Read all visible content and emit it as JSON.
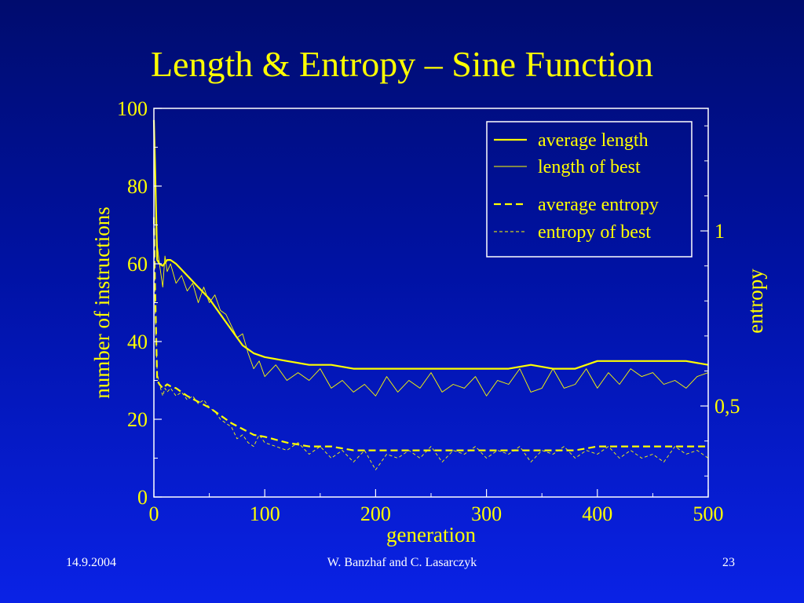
{
  "slide": {
    "title": "Length & Entropy – Sine Function",
    "footer_date": "14.9.2004",
    "footer_authors": "W. Banzhaf and C. Lasarczyk",
    "page_number": "23"
  },
  "colors": {
    "text": "#ffff00",
    "lines": "#ffff00",
    "axes": "#ffffff",
    "footer_text": "#ffffff"
  },
  "chart_data": {
    "type": "line",
    "title": "",
    "xlabel": "generation",
    "ylabel": "number of instructions",
    "y2label": "entropy",
    "xlim": [
      0,
      500
    ],
    "ylim": [
      0,
      100
    ],
    "y2lim": [
      0.24,
      1.35
    ],
    "x_ticks": [
      0,
      100,
      200,
      300,
      400,
      500
    ],
    "x_tick_labels": [
      "0",
      "100",
      "200",
      "300",
      "400",
      "500"
    ],
    "y_ticks": [
      0,
      20,
      40,
      60,
      80,
      100
    ],
    "y_tick_labels": [
      "0",
      "20",
      "40",
      "60",
      "80",
      "100"
    ],
    "y2_ticks": [
      0.5,
      1
    ],
    "y2_tick_labels": [
      "0,5",
      "1"
    ],
    "grid": false,
    "legend_position": "top-right",
    "series": [
      {
        "name": "average length",
        "axis": "left",
        "style": "solid-thick",
        "x": [
          0,
          1,
          3,
          5,
          8,
          12,
          15,
          20,
          30,
          40,
          50,
          60,
          70,
          80,
          90,
          100,
          120,
          140,
          160,
          180,
          200,
          220,
          240,
          260,
          280,
          300,
          320,
          340,
          360,
          380,
          400,
          420,
          440,
          460,
          480,
          500
        ],
        "y": [
          97,
          86,
          61,
          60,
          59.5,
          61,
          61,
          60,
          57,
          54,
          51,
          47,
          43,
          39,
          37,
          36,
          35,
          34,
          34,
          33,
          33,
          33,
          33,
          33,
          33,
          33,
          33,
          34,
          33,
          33,
          35,
          35,
          35,
          35,
          35,
          34
        ]
      },
      {
        "name": "length of best",
        "axis": "left",
        "style": "solid-thin",
        "x": [
          0,
          1,
          3,
          5,
          8,
          10,
          12,
          15,
          20,
          25,
          30,
          35,
          40,
          45,
          50,
          55,
          60,
          65,
          70,
          75,
          80,
          85,
          90,
          95,
          100,
          110,
          120,
          130,
          140,
          150,
          160,
          170,
          180,
          190,
          200,
          210,
          220,
          230,
          240,
          250,
          260,
          270,
          280,
          290,
          300,
          310,
          320,
          330,
          340,
          350,
          360,
          370,
          380,
          390,
          400,
          410,
          420,
          430,
          440,
          450,
          460,
          470,
          480,
          490,
          500
        ],
        "y": [
          97,
          85,
          65,
          60,
          54,
          62,
          58,
          60,
          55,
          57,
          53,
          55,
          50,
          54,
          50,
          52,
          48,
          47,
          44,
          41,
          42,
          37,
          33,
          35,
          31,
          34,
          30,
          32,
          30,
          33,
          28,
          30,
          27,
          29,
          26,
          31,
          27,
          30,
          28,
          32,
          27,
          29,
          28,
          31,
          26,
          30,
          29,
          33,
          27,
          28,
          33,
          28,
          29,
          33,
          28,
          32,
          29,
          33,
          31,
          32,
          29,
          30,
          28,
          31,
          32
        ]
      },
      {
        "name": "average entropy",
        "axis": "left",
        "style": "dashed-thick",
        "x": [
          0,
          1,
          3,
          5,
          8,
          12,
          15,
          20,
          30,
          40,
          50,
          60,
          70,
          80,
          90,
          100,
          120,
          140,
          160,
          180,
          200,
          220,
          240,
          260,
          280,
          300,
          320,
          340,
          360,
          380,
          400,
          420,
          440,
          460,
          480,
          500
        ],
        "y": [
          72,
          55,
          30,
          29,
          28,
          29,
          28.5,
          28,
          26,
          24.5,
          23,
          21,
          19,
          17.5,
          16,
          15.5,
          14,
          13,
          13,
          12,
          12,
          12,
          12,
          12,
          12,
          12,
          12,
          12,
          12,
          12,
          13,
          13,
          13,
          13,
          13,
          13
        ]
      },
      {
        "name": "entropy of best",
        "axis": "left",
        "style": "dashed-thin",
        "x": [
          0,
          1,
          3,
          5,
          8,
          10,
          12,
          15,
          20,
          25,
          30,
          35,
          40,
          45,
          50,
          55,
          60,
          65,
          70,
          75,
          80,
          85,
          90,
          95,
          100,
          110,
          120,
          130,
          140,
          150,
          160,
          170,
          180,
          190,
          200,
          210,
          220,
          230,
          240,
          250,
          260,
          270,
          280,
          290,
          300,
          310,
          320,
          330,
          340,
          350,
          360,
          370,
          380,
          390,
          400,
          410,
          420,
          430,
          440,
          450,
          460,
          470,
          480,
          490,
          500
        ],
        "y": [
          72,
          50,
          32,
          29,
          26,
          28,
          27,
          28,
          26,
          27,
          25,
          26,
          24,
          25,
          23,
          22,
          20,
          19,
          18,
          15,
          16,
          14,
          13,
          16,
          14,
          13,
          12,
          14,
          11,
          13,
          10,
          12,
          9,
          12,
          7,
          11,
          10,
          12,
          10,
          13,
          9,
          12,
          11,
          13,
          10,
          12,
          11,
          13,
          9,
          12,
          11,
          13,
          10,
          12,
          11,
          13,
          10,
          12,
          10,
          11,
          9,
          13,
          11,
          12,
          10
        ]
      }
    ]
  }
}
